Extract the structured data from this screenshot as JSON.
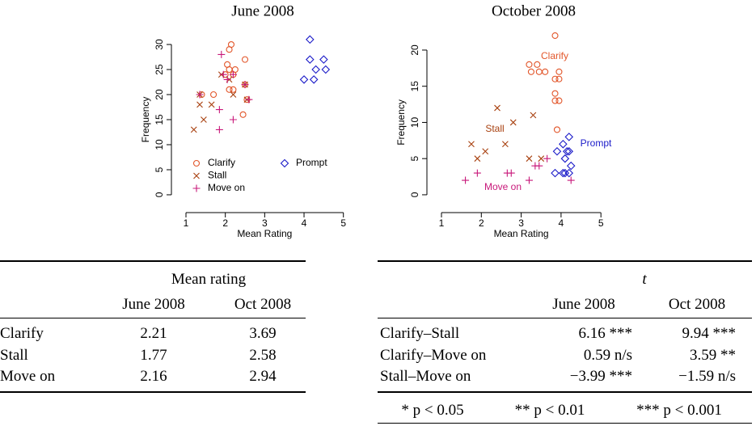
{
  "chart_data": [
    {
      "type": "scatter",
      "title": "June 2008",
      "x_label": "Mean Rating",
      "y_label": "Frequency",
      "xlim": [
        0.85,
        5.15
      ],
      "ylim": [
        -1.2,
        32.2
      ],
      "xticks": [
        1,
        2,
        3,
        4,
        5
      ],
      "yticks": [
        0,
        5,
        10,
        15,
        20,
        25,
        30
      ],
      "legend": "bottomleft",
      "series": [
        {
          "name": "Clarify",
          "color": "#e2562a",
          "marker": "circle",
          "x": [
            2.15,
            2.1,
            2.05,
            2.1,
            2.25,
            2.5,
            2.0,
            1.7,
            2.5,
            2.1,
            2.2,
            2.45,
            2.55,
            1.4,
            2.2
          ],
          "values": [
            30,
            29,
            26,
            25,
            25,
            27,
            24,
            20,
            22,
            21,
            21,
            16,
            19,
            20,
            24
          ]
        },
        {
          "name": "Stall",
          "color": "#a8400f",
          "marker": "x",
          "x": [
            1.2,
            1.45,
            1.35,
            1.65,
            2.1,
            2.2,
            2.5,
            2.55,
            1.35,
            1.9
          ],
          "values": [
            13,
            15,
            18,
            18,
            23,
            20,
            22,
            19,
            20,
            24
          ]
        },
        {
          "name": "Move on",
          "color": "#c8187a",
          "marker": "plus",
          "x": [
            1.9,
            2.05,
            1.35,
            1.85,
            1.85,
            2.2,
            2.5,
            2.6,
            2.2,
            1.95
          ],
          "values": [
            28,
            23,
            20,
            17,
            13,
            15,
            22,
            19,
            24,
            24
          ]
        },
        {
          "name": "Prompt",
          "color": "#1a1ac8",
          "marker": "diamond",
          "x": [
            4.15,
            4.15,
            4.5,
            4.3,
            4.55,
            4.0,
            4.25
          ],
          "values": [
            31,
            27,
            27,
            25,
            25,
            23,
            23
          ]
        }
      ]
    },
    {
      "type": "scatter",
      "title": "October 2008",
      "x_label": "Mean Rating",
      "y_label": "Frequency",
      "xlim": [
        0.85,
        5.15
      ],
      "ylim": [
        -0.9,
        22.9
      ],
      "xticks": [
        1,
        2,
        3,
        4,
        5
      ],
      "yticks": [
        0,
        5,
        10,
        15,
        20
      ],
      "legend": "direct",
      "series": [
        {
          "name": "Clarify",
          "color": "#e2562a",
          "marker": "circle",
          "x": [
            3.2,
            3.4,
            3.25,
            3.45,
            3.6,
            3.85,
            3.95,
            3.85,
            3.95,
            3.85,
            3.85,
            3.95,
            3.9
          ],
          "values": [
            18,
            18,
            17,
            17,
            17,
            22,
            17,
            16,
            16,
            14,
            13,
            13,
            9
          ]
        },
        {
          "name": "Stall",
          "color": "#a8400f",
          "marker": "x",
          "x": [
            1.75,
            2.1,
            1.9,
            2.4,
            2.8,
            2.6,
            3.3,
            3.2,
            3.5
          ],
          "values": [
            7,
            6,
            5,
            12,
            10,
            7,
            11,
            5,
            5
          ]
        },
        {
          "name": "Move on",
          "color": "#c8187a",
          "marker": "plus",
          "x": [
            1.6,
            1.9,
            2.65,
            2.75,
            3.35,
            3.45,
            3.2,
            4.25,
            3.65
          ],
          "values": [
            2,
            3,
            3,
            3,
            4,
            4,
            2,
            2,
            5
          ]
        },
        {
          "name": "Prompt",
          "color": "#1a1ac8",
          "marker": "diamond",
          "x": [
            4.2,
            4.05,
            3.9,
            4.15,
            4.2,
            4.1,
            4.25,
            3.85,
            4.05,
            4.1,
            4.2
          ],
          "values": [
            8,
            7,
            6,
            6,
            6,
            5,
            4,
            3,
            3,
            3,
            3
          ]
        }
      ]
    }
  ],
  "tables": [
    {
      "header": "Mean rating",
      "columns": [
        "June 2008",
        "Oct 2008"
      ],
      "rows": [
        [
          "Clarify",
          "2.21",
          "3.69"
        ],
        [
          "Stall",
          "1.77",
          "2.58"
        ],
        [
          "Move on",
          "2.16",
          "2.94"
        ]
      ]
    },
    {
      "header": "t",
      "columns": [
        "June 2008",
        "Oct 2008"
      ],
      "rows": [
        [
          "Clarify–Stall",
          "6.16 ***",
          "9.94 ***"
        ],
        [
          "Clarify–Move on",
          "0.59 n/s",
          "3.59 **"
        ],
        [
          "Stall–Move on",
          "−3.99 ***",
          "−1.59 n/s"
        ]
      ],
      "footnote": [
        "* p < 0.05",
        "** p < 0.01",
        "*** p < 0.001"
      ]
    }
  ]
}
